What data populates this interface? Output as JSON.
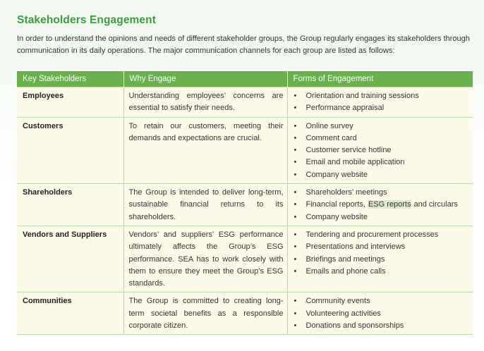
{
  "section": {
    "title": "Stakeholders Engagement",
    "intro": "In order to understand the opinions and needs of different stakeholder groups, the Group regularly engages its stakeholders through communication in its daily operations. The major communication channels for each group are listed as follows:"
  },
  "table": {
    "headers": [
      "Key Stakeholders",
      "Why Engage",
      "Forms of Engagement"
    ],
    "rows": [
      {
        "stakeholder": "Employees",
        "why": "Understanding employees’ concerns are essential to satisfy their needs.",
        "forms": [
          "Orientation and training sessions",
          "Performance appraisal"
        ]
      },
      {
        "stakeholder": "Customers",
        "why": "To retain our customers, meeting their demands and expectations are crucial.",
        "forms": [
          "Online survey",
          "Comment card",
          "Customer service hotline",
          "Email and mobile application",
          "Company website"
        ]
      },
      {
        "stakeholder": "Shareholders",
        "why": "The Group is intended to deliver long-term, sustainable financial returns to its shareholders.",
        "forms": [
          "Shareholders’ meetings",
          "Financial reports, ",
          "Company website"
        ],
        "highlight_text": "ESG reports",
        "forms_suffix": " and circulars"
      },
      {
        "stakeholder": "Vendors and Suppliers",
        "why": "Vendors’ and suppliers’ ESG performance ultimately affects the Group’s ESG performance. SEA has to work closely with them to ensure they meet the Group’s ESG standards.",
        "forms": [
          "Tendering and procurement processes",
          "Presentations and interviews",
          "Briefings and meetings",
          "Emails and phone calls"
        ]
      },
      {
        "stakeholder": "Communities",
        "why": "The Group is committed to creating long-term societal benefits as a responsible corporate citizen.",
        "forms": [
          "Community events",
          "Volunteering activities",
          "Donations and sponsorships"
        ]
      }
    ]
  }
}
